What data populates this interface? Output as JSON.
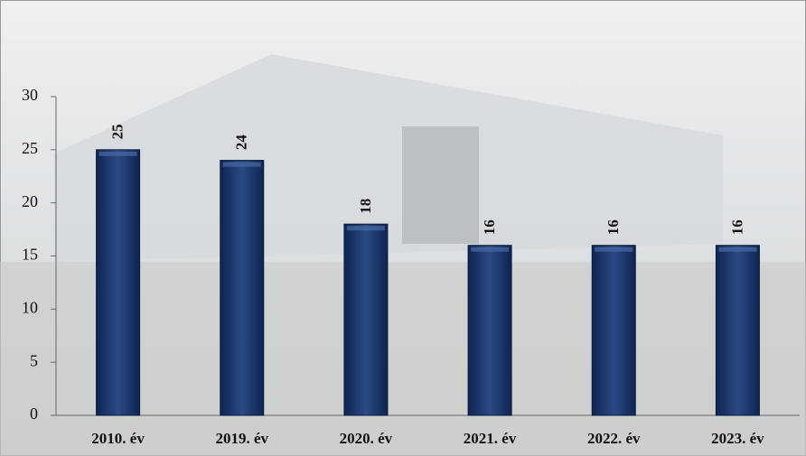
{
  "chart_data": {
    "type": "bar",
    "categories": [
      "2010. év",
      "2019. év",
      "2020. év",
      "2021. év",
      "2022. év",
      "2023. év"
    ],
    "values": [
      25,
      24,
      18,
      16,
      16,
      16
    ],
    "color": "#1f3a6e",
    "ylim": [
      0,
      30
    ],
    "yticks": [
      0,
      5,
      10,
      15,
      20,
      25,
      30
    ]
  }
}
